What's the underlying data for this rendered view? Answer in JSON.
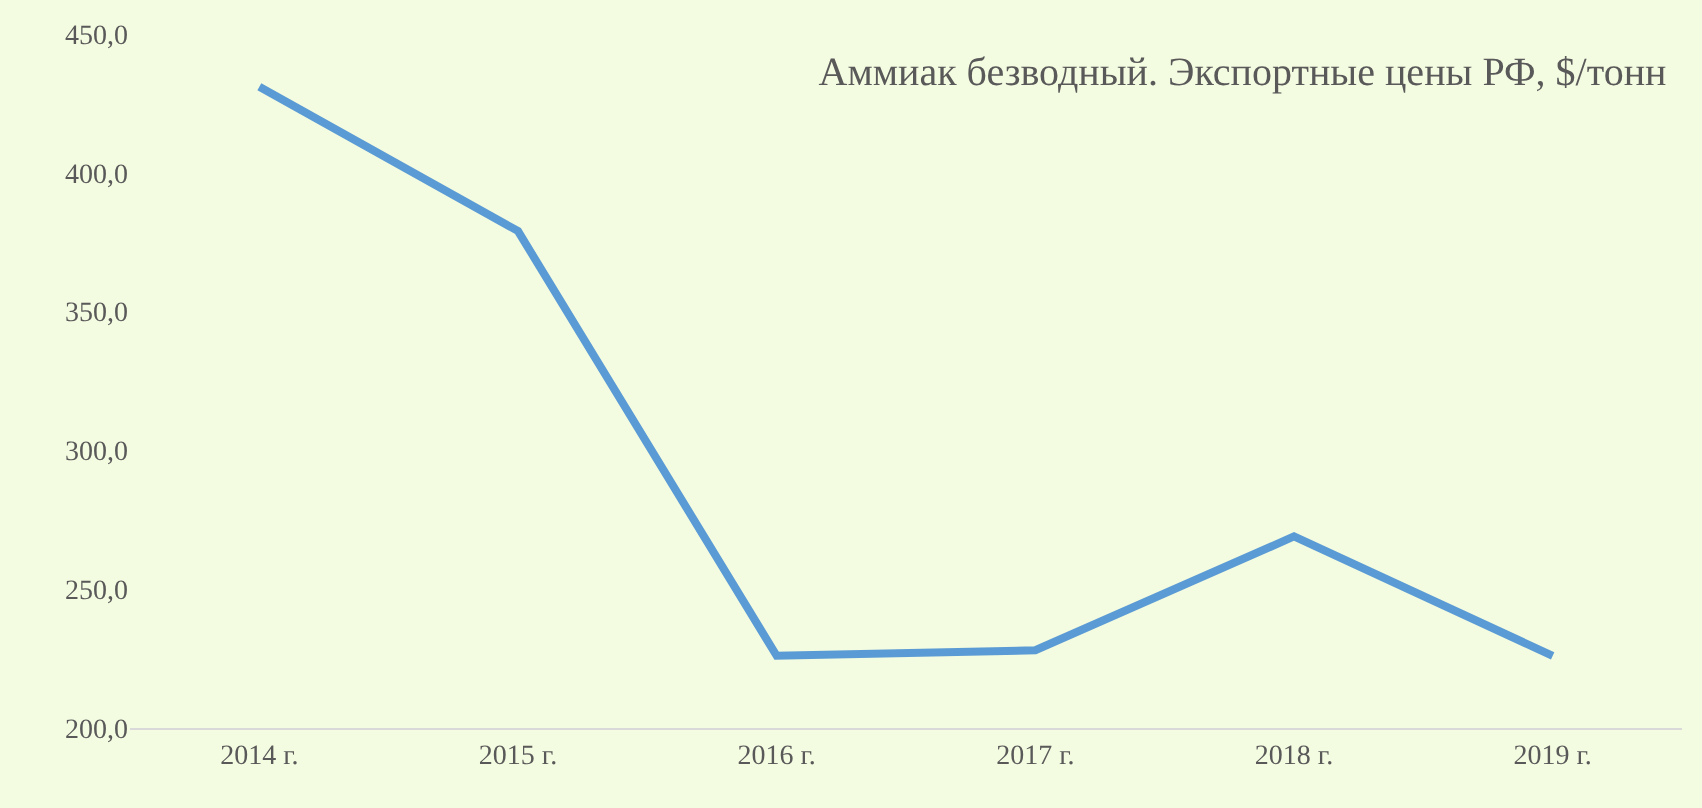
{
  "chart_data": {
    "type": "line",
    "title": "Аммиак безводный. Экспортные цены РФ, $/тонн",
    "categories": [
      "2014 г.",
      "2015 г.",
      "2016 г.",
      "2017 г.",
      "2018 г.",
      "2019 г."
    ],
    "series": [
      {
        "color": "#5b9bd5",
        "values": [
          431,
          379,
          226,
          228,
          269,
          226
        ]
      }
    ],
    "ylim": [
      200,
      450
    ],
    "yticks": [
      {
        "value": 200,
        "label": "200,0"
      },
      {
        "value": 250,
        "label": "250,0"
      },
      {
        "value": 300,
        "label": "300,0"
      },
      {
        "value": 350,
        "label": "350,0"
      },
      {
        "value": 400,
        "label": "400,0"
      },
      {
        "value": 450,
        "label": "450,0"
      }
    ],
    "grid": false,
    "marker": "none",
    "line_style": "solid"
  }
}
